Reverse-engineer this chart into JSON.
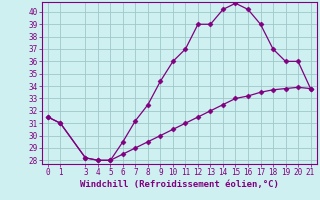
{
  "title": "",
  "xlabel": "Windchill (Refroidissement éolien,°C)",
  "background_color": "#cef0f0",
  "line_color": "#800080",
  "grid_color": "#a0c8c8",
  "xlim": [
    -0.5,
    21.5
  ],
  "ylim": [
    27.7,
    40.8
  ],
  "xticks": [
    0,
    1,
    3,
    4,
    5,
    6,
    7,
    8,
    9,
    10,
    11,
    12,
    13,
    14,
    15,
    16,
    17,
    18,
    19,
    20,
    21
  ],
  "yticks": [
    28,
    29,
    30,
    31,
    32,
    33,
    34,
    35,
    36,
    37,
    38,
    39,
    40
  ],
  "line1_x": [
    0,
    1,
    3,
    4,
    5,
    6,
    7,
    8,
    9,
    10,
    11,
    12,
    13,
    14,
    15,
    16,
    17,
    18,
    19,
    20,
    21
  ],
  "line1_y": [
    31.5,
    31.0,
    28.2,
    28.0,
    28.0,
    29.5,
    31.2,
    32.5,
    34.4,
    36.0,
    37.0,
    39.0,
    39.0,
    40.2,
    40.7,
    40.2,
    39.0,
    37.0,
    36.0,
    36.0,
    33.8
  ],
  "line2_x": [
    0,
    1,
    3,
    4,
    5,
    6,
    7,
    8,
    9,
    10,
    11,
    12,
    13,
    14,
    15,
    16,
    17,
    18,
    19,
    20,
    21
  ],
  "line2_y": [
    31.5,
    31.0,
    28.2,
    28.0,
    28.0,
    28.5,
    29.0,
    29.5,
    30.0,
    30.5,
    31.0,
    31.5,
    32.0,
    32.5,
    33.0,
    33.2,
    33.5,
    33.7,
    33.8,
    33.9,
    33.8
  ],
  "marker": "D",
  "markersize": 2.5,
  "linewidth": 0.9,
  "font_color": "#800080",
  "tick_fontsize": 5.5,
  "xlabel_fontsize": 6.5
}
